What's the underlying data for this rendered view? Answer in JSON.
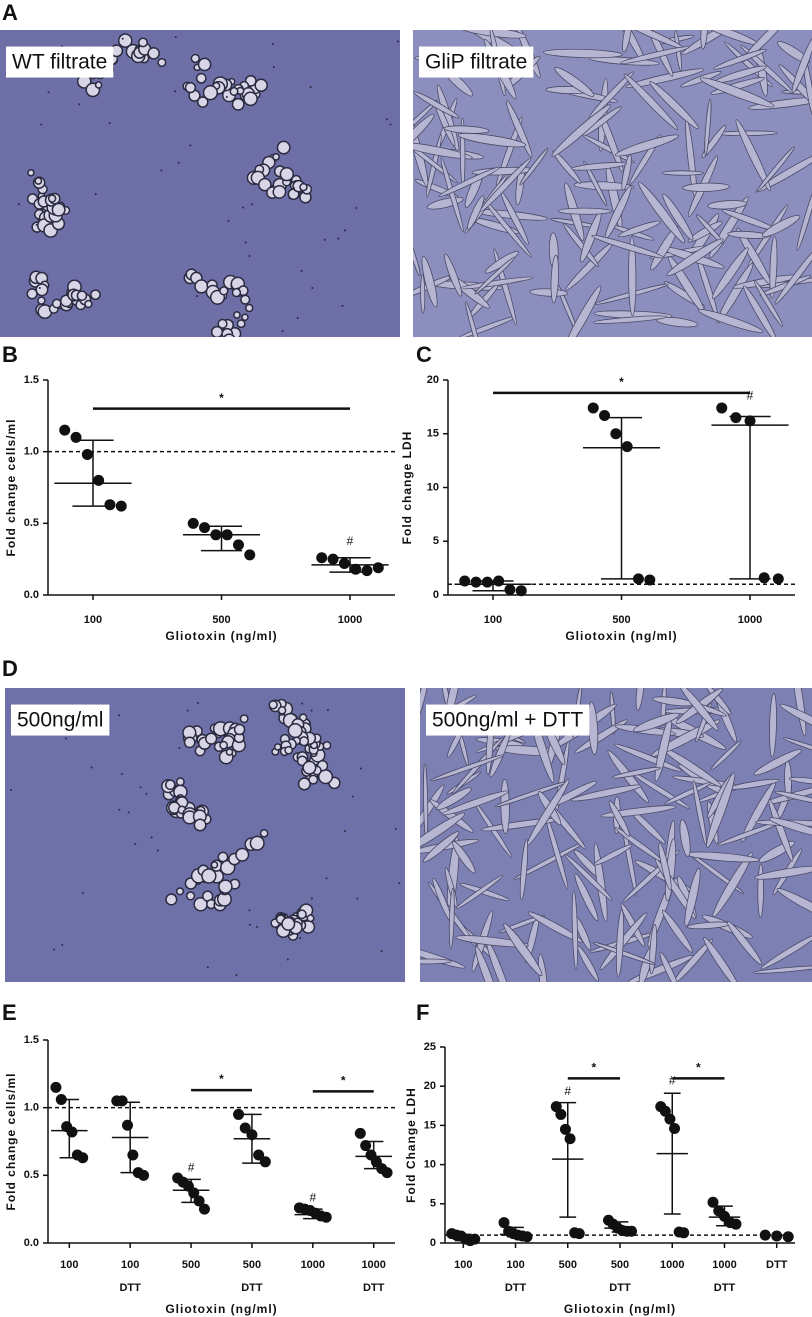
{
  "image_panels": [
    "A",
    "D"
  ],
  "images": [
    {
      "caption": "WT filtrate"
    },
    {
      "caption": "GliP filtrate"
    },
    {
      "caption": "500ng/ml"
    },
    {
      "caption": "500ng/ml + DTT"
    }
  ],
  "chart_data": [
    {
      "type": "dot",
      "label": "B",
      "ylabel": "Fold change cells/ml",
      "xlabel": "Gliotoxin (ng/ml)",
      "color": "#111111",
      "categories": [
        [
          "100"
        ],
        [
          "500"
        ],
        [
          "1000"
        ]
      ],
      "points": [
        [
          1.15,
          1.1,
          0.98,
          0.8,
          0.63,
          0.62
        ],
        [
          0.5,
          0.47,
          0.42,
          0.42,
          0.35,
          0.28
        ],
        [
          0.26,
          0.25,
          0.22,
          0.18,
          0.17,
          0.19
        ]
      ],
      "center": [
        0.78,
        0.42,
        0.21
      ],
      "lower": [
        0.62,
        0.31,
        0.16
      ],
      "upper": [
        1.08,
        0.48,
        0.26
      ],
      "ylim": [
        0,
        1.5
      ],
      "yticks": [
        {
          "value": 0,
          "label": "0.0"
        },
        {
          "value": 0.5,
          "label": "0.5"
        },
        {
          "value": 1,
          "label": "1.0"
        },
        {
          "value": 1.5,
          "label": "1.5"
        }
      ],
      "reference_line": 1,
      "significance": [
        {
          "from": 0,
          "to": 2,
          "y": 1.3,
          "label": "*"
        }
      ],
      "markers": [
        {
          "category": 2,
          "y": 0.37,
          "label": "#"
        }
      ]
    },
    {
      "type": "dot",
      "label": "C",
      "ylabel": "Fold change LDH",
      "xlabel": "Gliotoxin (ng/ml)",
      "color": "#111111",
      "categories": [
        [
          "100"
        ],
        [
          "500"
        ],
        [
          "1000"
        ]
      ],
      "points": [
        [
          1.3,
          1.2,
          1.2,
          1.3,
          0.5,
          0.4
        ],
        [
          17.4,
          16.7,
          15.0,
          13.8,
          1.5,
          1.4
        ],
        [
          17.4,
          16.5,
          16.2,
          1.6,
          1.5
        ]
      ],
      "center": [
        1.0,
        13.7,
        15.8
      ],
      "lower": [
        0.4,
        1.5,
        1.5
      ],
      "upper": [
        1.3,
        16.5,
        16.6
      ],
      "ylim": [
        0,
        20
      ],
      "yticks": [
        0,
        5,
        10,
        15,
        20
      ],
      "reference_line": 1,
      "significance": [
        {
          "from": 0,
          "to": 2,
          "y": 18.8,
          "label": "*"
        }
      ],
      "markers": [
        {
          "category": 2,
          "y": 18.5,
          "label": "#"
        }
      ]
    },
    {
      "type": "dot",
      "label": "E",
      "ylabel": "Fold change cells/ml",
      "xlabel": "Gliotoxin (ng/ml)",
      "color": "#111111",
      "categories": [
        [
          "100"
        ],
        [
          "100",
          "DTT"
        ],
        [
          "500"
        ],
        [
          "500",
          "DTT"
        ],
        [
          "1000"
        ],
        [
          "1000",
          "DTT"
        ]
      ],
      "points": [
        [
          1.15,
          1.06,
          0.86,
          0.82,
          0.65,
          0.63
        ],
        [
          1.05,
          1.05,
          0.87,
          0.65,
          0.52,
          0.5
        ],
        [
          0.48,
          0.45,
          0.42,
          0.37,
          0.31,
          0.25
        ],
        [
          0.95,
          0.85,
          0.8,
          0.65,
          0.6
        ],
        [
          0.26,
          0.25,
          0.24,
          0.22,
          0.2,
          0.19
        ],
        [
          0.81,
          0.72,
          0.65,
          0.6,
          0.55,
          0.52
        ]
      ],
      "center": [
        0.83,
        0.78,
        0.39,
        0.77,
        0.21,
        0.64
      ],
      "lower": [
        0.63,
        0.52,
        0.3,
        0.59,
        0.18,
        0.55
      ],
      "upper": [
        1.06,
        1.04,
        0.47,
        0.95,
        0.25,
        0.75
      ],
      "ylim": [
        0,
        1.5
      ],
      "yticks": [
        {
          "value": 0,
          "label": "0.0"
        },
        {
          "value": 0.5,
          "label": "0.5"
        },
        {
          "value": 1,
          "label": "1.0"
        },
        {
          "value": 1.5,
          "label": "1.5"
        }
      ],
      "reference_line": 1,
      "significance": [
        {
          "from": 2,
          "to": 3,
          "y": 1.13,
          "label": "*"
        },
        {
          "from": 4,
          "to": 5,
          "y": 1.12,
          "label": "*"
        }
      ],
      "markers": [
        {
          "category": 2,
          "y": 0.55,
          "label": "#"
        },
        {
          "category": 4,
          "y": 0.33,
          "label": "#"
        }
      ]
    },
    {
      "type": "dot",
      "label": "F",
      "ylabel": "Fold Change LDH",
      "xlabel": "Gliotoxin (ng/ml)",
      "color": "#111111",
      "categories": [
        [
          "100"
        ],
        [
          "100",
          "DTT"
        ],
        [
          "500"
        ],
        [
          "500",
          "DTT"
        ],
        [
          "1000"
        ],
        [
          "1000",
          "DTT"
        ],
        [
          "DTT"
        ]
      ],
      "points": [
        [
          1.2,
          1.0,
          0.9,
          0.5,
          0.3,
          0.5
        ],
        [
          2.6,
          1.5,
          1.2,
          1.0,
          0.9,
          0.8
        ],
        [
          17.4,
          16.4,
          14.5,
          13.3,
          1.3,
          1.2
        ],
        [
          2.9,
          2.4,
          1.9,
          1.6,
          1.5,
          1.5
        ],
        [
          17.4,
          16.8,
          15.8,
          14.6,
          1.4,
          1.3
        ],
        [
          5.2,
          4.1,
          3.4,
          2.6,
          2.4
        ],
        [
          1.0,
          0.9,
          0.8
        ]
      ],
      "center": [
        0.8,
        1.1,
        10.7,
        1.9,
        11.4,
        3.3,
        null
      ],
      "lower": [
        0.3,
        0.8,
        3.3,
        1.4,
        3.7,
        2.2,
        null
      ],
      "upper": [
        1.1,
        2.0,
        17.9,
        2.7,
        19.1,
        4.7,
        null
      ],
      "ylim": [
        0,
        25
      ],
      "yticks": [
        0,
        5,
        10,
        15,
        20,
        25
      ],
      "reference_line": 1,
      "significance": [
        {
          "from": 2,
          "to": 3,
          "y": 21.0,
          "label": "*"
        },
        {
          "from": 4,
          "to": 5,
          "y": 21.0,
          "label": "*"
        }
      ],
      "markers": [
        {
          "category": 2,
          "y": 19.3,
          "label": "#"
        },
        {
          "category": 4,
          "y": 20.6,
          "label": "#"
        }
      ]
    }
  ]
}
